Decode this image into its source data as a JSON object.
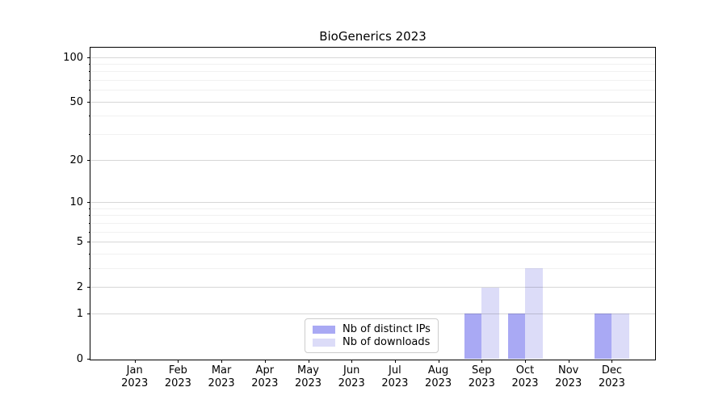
{
  "chart_data": {
    "type": "bar",
    "title": "BioGenerics 2023",
    "categories": [
      "Jan 2023",
      "Feb 2023",
      "Mar 2023",
      "Apr 2023",
      "May 2023",
      "Jun 2023",
      "Jul 2023",
      "Aug 2023",
      "Sep 2023",
      "Oct 2023",
      "Nov 2023",
      "Dec 2023"
    ],
    "series": [
      {
        "name": "Nb of distinct IPs",
        "color": "#a9a9f4",
        "values": [
          0,
          0,
          0,
          0,
          0,
          0,
          0,
          0,
          1,
          1,
          0,
          1
        ]
      },
      {
        "name": "Nb of downloads",
        "color": "#dcdcf8",
        "values": [
          0,
          0,
          0,
          0,
          0,
          0,
          0,
          0,
          2,
          3,
          0,
          1
        ]
      }
    ],
    "xlabel": "",
    "ylabel": "",
    "yscale": "log1p",
    "ylim": [
      0,
      117
    ],
    "y_major_ticks": [
      0,
      1,
      2,
      5,
      10,
      20,
      50,
      100
    ],
    "y_minor_ticks": [
      3,
      4,
      6,
      7,
      8,
      9,
      30,
      40,
      60,
      70,
      80,
      90
    ],
    "grid": "horizontal, major and minor, drawn above bars",
    "legend_position": "lower center, inside axes"
  },
  "legend": {
    "entries": [
      "Nb of distinct IPs",
      "Nb of downloads"
    ]
  },
  "colors": {
    "background": "#ffffff",
    "spine": "#000000",
    "text": "#000000",
    "major_grid": "#d8d8d8",
    "minor_grid": "#f1f1f1",
    "series_1": "#a9a9f4",
    "series_2": "#dcdcf8"
  }
}
